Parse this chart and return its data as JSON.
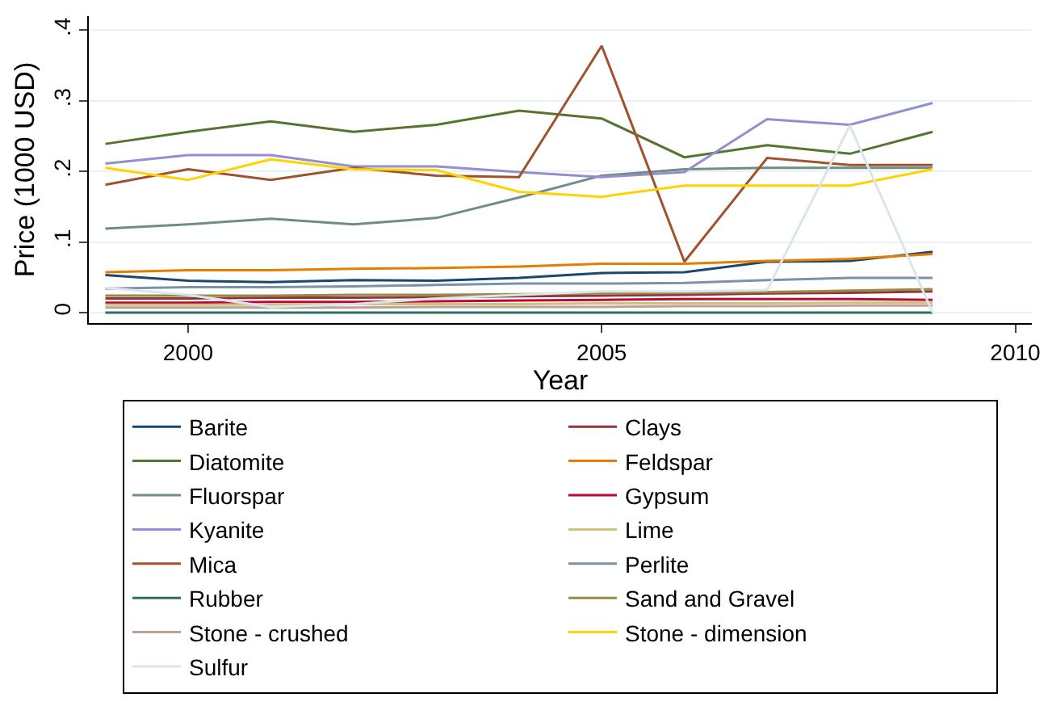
{
  "chart_data": {
    "type": "line",
    "xlabel": "Year",
    "ylabel": "Price (1000 USD)",
    "x": [
      1999,
      2000,
      2001,
      2002,
      2003,
      2004,
      2005,
      2006,
      2007,
      2008,
      2009
    ],
    "xlim": [
      1998.8,
      2010.2
    ],
    "xticks": [
      2000,
      2005,
      2010
    ],
    "ylim": [
      -0.015,
      0.42
    ],
    "yticks": [
      {
        "value": 0,
        "label": "0"
      },
      {
        "value": 0.1,
        "label": ".1"
      },
      {
        "value": 0.2,
        "label": ".2"
      },
      {
        "value": 0.3,
        "label": ".3"
      },
      {
        "value": 0.4,
        "label": ".4"
      }
    ],
    "grid": "y",
    "legend": "bottom",
    "marker": "none",
    "line_style": "solid",
    "series": [
      {
        "name": "Barite",
        "color": "#1a476f",
        "values": [
          0.053,
          0.045,
          0.043,
          0.046,
          0.045,
          0.049,
          0.056,
          0.057,
          0.072,
          0.073,
          0.086
        ]
      },
      {
        "name": "Clays",
        "color": "#90353b",
        "values": [
          0.02,
          0.02,
          0.021,
          0.021,
          0.022,
          0.023,
          0.024,
          0.025,
          0.027,
          0.028,
          0.03
        ]
      },
      {
        "name": "Diatomite",
        "color": "#55752f",
        "values": [
          0.239,
          0.256,
          0.271,
          0.256,
          0.266,
          0.286,
          0.275,
          0.22,
          0.237,
          0.225,
          0.256
        ]
      },
      {
        "name": "Feldspar",
        "color": "#e37e00",
        "values": [
          0.057,
          0.06,
          0.06,
          0.062,
          0.063,
          0.065,
          0.069,
          0.069,
          0.073,
          0.076,
          0.083
        ]
      },
      {
        "name": "Fluorspar",
        "color": "#6e8e84",
        "values": [
          0.119,
          0.125,
          0.133,
          0.125,
          0.134,
          0.163,
          0.194,
          0.203,
          0.205,
          0.205,
          0.205
        ]
      },
      {
        "name": "Gypsum",
        "color": "#c10534",
        "values": [
          0.014,
          0.014,
          0.015,
          0.015,
          0.016,
          0.017,
          0.018,
          0.019,
          0.019,
          0.019,
          0.018
        ]
      },
      {
        "name": "Kyanite",
        "color": "#938dd2",
        "values": [
          0.211,
          0.223,
          0.223,
          0.207,
          0.207,
          0.199,
          0.192,
          0.199,
          0.274,
          0.266,
          0.297
        ]
      },
      {
        "name": "Lime",
        "color": "#cac27e",
        "values": [
          0.011,
          0.011,
          0.011,
          0.012,
          0.012,
          0.012,
          0.013,
          0.013,
          0.013,
          0.014,
          0.014
        ]
      },
      {
        "name": "Mica",
        "color": "#a0522d",
        "values": [
          0.181,
          0.203,
          0.188,
          0.205,
          0.194,
          0.192,
          0.378,
          0.072,
          0.219,
          0.209,
          0.209
        ]
      },
      {
        "name": "Perlite",
        "color": "#7b92a8",
        "values": [
          0.034,
          0.036,
          0.036,
          0.037,
          0.039,
          0.041,
          0.041,
          0.042,
          0.046,
          0.049,
          0.049
        ]
      },
      {
        "name": "Rubber",
        "color": "#2d6d66",
        "values": [
          0.0,
          0.0,
          0.0,
          0.0,
          0.0,
          0.0,
          0.0,
          0.0,
          0.0,
          0.0,
          0.0
        ]
      },
      {
        "name": "Sand and Gravel",
        "color": "#9c8847",
        "values": [
          0.024,
          0.024,
          0.024,
          0.025,
          0.025,
          0.026,
          0.027,
          0.028,
          0.029,
          0.031,
          0.033
        ]
      },
      {
        "name": "Stone - crushed",
        "color": "#bfa19c",
        "values": [
          0.007,
          0.007,
          0.007,
          0.007,
          0.008,
          0.008,
          0.008,
          0.009,
          0.009,
          0.01,
          0.01
        ]
      },
      {
        "name": "Stone - dimension",
        "color": "#ffd200",
        "values": [
          0.205,
          0.188,
          0.217,
          0.203,
          0.202,
          0.171,
          0.164,
          0.18,
          0.18,
          0.18,
          0.203
        ]
      },
      {
        "name": "Sulfur",
        "color": "#d9e6eb",
        "values": [
          0.035,
          0.025,
          0.008,
          0.012,
          0.02,
          0.025,
          0.03,
          0.03,
          0.032,
          0.265,
          0.0
        ]
      }
    ]
  }
}
